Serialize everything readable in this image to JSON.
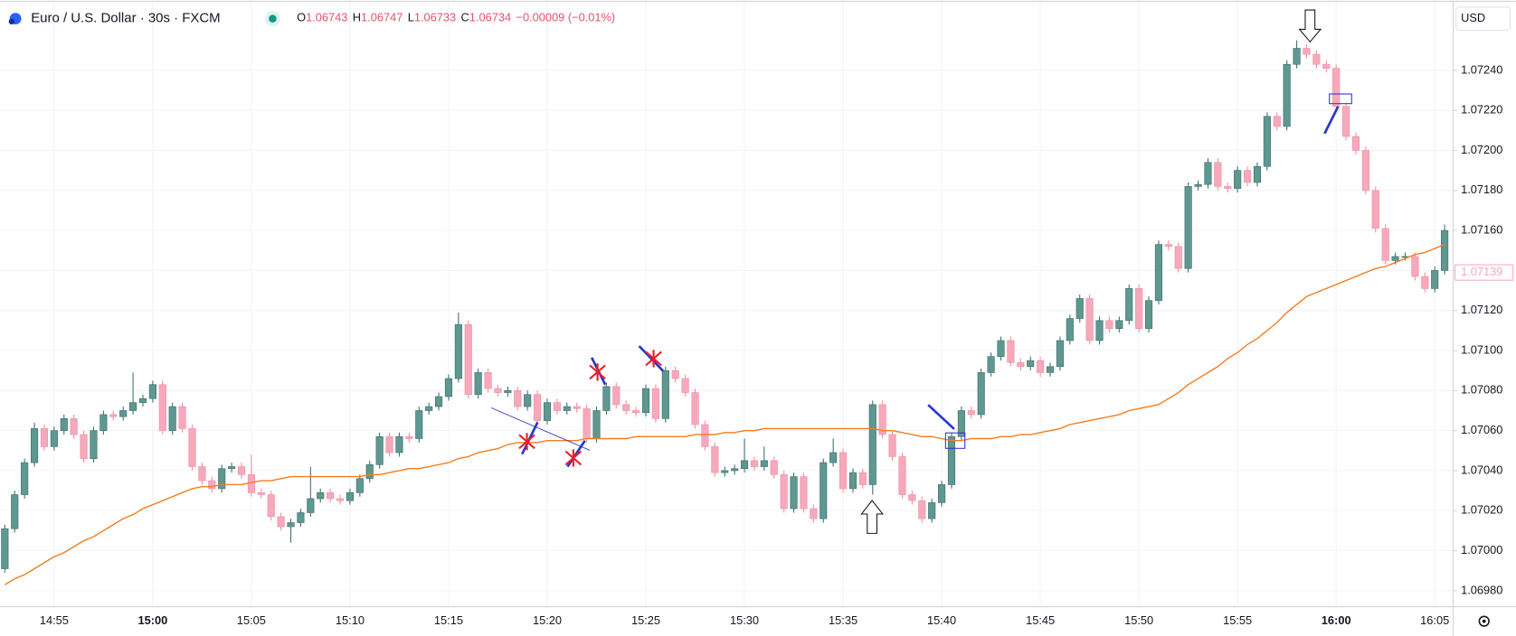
{
  "chart_data": {
    "type": "candlestick",
    "header": {
      "symbol": "Euro / U.S. Dollar · 30s · FXCM",
      "ohlc": [
        {
          "label": "O",
          "value": "1.06743"
        },
        {
          "label": "H",
          "value": "1.06747"
        },
        {
          "label": "L",
          "value": "1.06733"
        },
        {
          "label": "C",
          "value": "1.06734"
        }
      ],
      "change": "−0.00009 (−0.01%)"
    },
    "currency": "USD",
    "up_color": "#5f9791",
    "down_color": "#f7a9bb",
    "grid": true,
    "categories": [
      null,
      null,
      null,
      null,
      null,
      "14:55",
      null,
      null,
      null,
      null,
      null,
      null,
      null,
      null,
      null,
      "15:00",
      null,
      null,
      null,
      null,
      null,
      null,
      null,
      null,
      null,
      "15:05",
      null,
      null,
      null,
      null,
      null,
      null,
      null,
      null,
      null,
      "15:10",
      null,
      null,
      null,
      null,
      null,
      null,
      null,
      null,
      null,
      "15:15",
      null,
      null,
      null,
      null,
      null,
      null,
      null,
      null,
      null,
      "15:20",
      null,
      null,
      null,
      null,
      null,
      null,
      null,
      null,
      null,
      "15:25",
      null,
      null,
      null,
      null,
      null,
      null,
      null,
      null,
      null,
      "15:30",
      null,
      null,
      null,
      null,
      null,
      null,
      null,
      null,
      null,
      "15:35",
      null,
      null,
      null,
      null,
      null,
      null,
      null,
      null,
      null,
      "15:40",
      null,
      null,
      null,
      null,
      null,
      null,
      null,
      null,
      null,
      "15:45",
      null,
      null,
      null,
      null,
      null,
      null,
      null,
      null,
      null,
      "15:50",
      null,
      null,
      null,
      null,
      null,
      null,
      null,
      null,
      null,
      "15:55",
      null,
      null,
      null,
      null,
      null,
      null,
      null,
      null,
      null,
      "16:00",
      null,
      null,
      null,
      null,
      null,
      null,
      null,
      null,
      null,
      "16:05",
      null
    ],
    "open": [
      1.06991,
      1.07011,
      1.07028,
      1.07044,
      1.07061,
      1.07052,
      1.0706,
      1.07066,
      1.07058,
      1.07046,
      1.0706,
      1.07068,
      1.07067,
      1.0707,
      1.07074,
      1.07076,
      1.07083,
      1.0706,
      1.07072,
      1.07061,
      1.07042,
      1.07035,
      1.07031,
      1.07041,
      1.07042,
      1.07038,
      1.07029,
      1.07028,
      1.07017,
      1.07012,
      1.07014,
      1.07019,
      1.07026,
      1.07029,
      1.07026,
      1.07025,
      1.07029,
      1.07036,
      1.07043,
      1.07057,
      1.07049,
      1.07057,
      1.07056,
      1.0707,
      1.07072,
      1.07077,
      1.07086,
      1.07113,
      1.07078,
      1.07089,
      1.07081,
      1.07079,
      1.0708,
      1.07072,
      1.07078,
      1.07065,
      1.07074,
      1.0707,
      1.07072,
      1.07071,
      1.07056,
      1.0707,
      1.07082,
      1.07073,
      1.0707,
      1.07069,
      1.07081,
      1.07066,
      1.0709,
      1.07086,
      1.07079,
      1.07063,
      1.07052,
      1.07039,
      1.0704,
      1.07041,
      1.07045,
      1.07042,
      1.07045,
      1.07038,
      1.07021,
      1.07037,
      1.07021,
      1.07016,
      1.07044,
      1.07049,
      1.07031,
      1.07039,
      1.07033,
      1.07073,
      1.07058,
      1.07047,
      1.07028,
      1.07025,
      1.07016,
      1.07024,
      1.07033,
      1.07057,
      1.0707,
      1.07068,
      1.07089,
      1.07097,
      1.07105,
      1.07094,
      1.07092,
      1.07095,
      1.07089,
      1.07092,
      1.07105,
      1.07116,
      1.07126,
      1.07105,
      1.07115,
      1.07111,
      1.07115,
      1.07131,
      1.07111,
      1.07125,
      1.07153,
      1.07152,
      1.07141,
      1.07182,
      1.07183,
      1.07194,
      1.07182,
      1.07181,
      1.0719,
      1.07184,
      1.07192,
      1.07217,
      1.07212,
      1.07243,
      1.07251,
      1.07248,
      1.07243,
      1.07241,
      1.07222,
      1.07207,
      1.072,
      1.0718,
      1.07161,
      1.07145,
      1.07147,
      1.07147,
      1.07137,
      1.07131,
      1.0714
    ],
    "high": [
      1.07013,
      1.0703,
      1.07046,
      1.07064,
      1.07063,
      1.07062,
      1.07068,
      1.07068,
      1.0706,
      1.07062,
      1.0707,
      1.0707,
      1.07072,
      1.07089,
      1.07078,
      1.07085,
      1.07085,
      1.07074,
      1.07074,
      1.07063,
      1.07044,
      1.07037,
      1.07043,
      1.07044,
      1.07044,
      1.07048,
      1.07031,
      1.0703,
      1.07019,
      1.07016,
      1.07021,
      1.07042,
      1.07031,
      1.07031,
      1.07028,
      1.07031,
      1.07038,
      1.07045,
      1.07059,
      1.07059,
      1.07059,
      1.07059,
      1.07072,
      1.07074,
      1.07079,
      1.07088,
      1.07119,
      1.07115,
      1.07091,
      1.07091,
      1.07083,
      1.07082,
      1.07082,
      1.0708,
      1.0708,
      1.07076,
      1.07076,
      1.07074,
      1.07074,
      1.07073,
      1.07072,
      1.07084,
      1.07084,
      1.07075,
      1.07072,
      1.07083,
      1.07083,
      1.07092,
      1.07092,
      1.07088,
      1.07081,
      1.07065,
      1.07054,
      1.07042,
      1.07043,
      1.07056,
      1.07047,
      1.07052,
      1.07047,
      1.0704,
      1.07039,
      1.07039,
      1.07023,
      1.07046,
      1.07056,
      1.07051,
      1.07041,
      1.07041,
      1.07075,
      1.07075,
      1.0706,
      1.07049,
      1.0703,
      1.07027,
      1.07026,
      1.07035,
      1.07059,
      1.07072,
      1.07072,
      1.07091,
      1.07099,
      1.07107,
      1.07107,
      1.07096,
      1.07097,
      1.07097,
      1.07094,
      1.07107,
      1.07118,
      1.07128,
      1.07128,
      1.07117,
      1.07117,
      1.07117,
      1.07133,
      1.07133,
      1.07127,
      1.07155,
      1.07155,
      1.07154,
      1.07184,
      1.07185,
      1.07196,
      1.07196,
      1.07184,
      1.07192,
      1.07192,
      1.07194,
      1.07219,
      1.07219,
      1.07245,
      1.07255,
      1.07253,
      1.0725,
      1.07245,
      1.07243,
      1.07224,
      1.07209,
      1.07202,
      1.07182,
      1.07163,
      1.07149,
      1.07149,
      1.07149,
      1.07139,
      1.07142,
      1.07163
    ],
    "low": [
      1.06989,
      1.07009,
      1.07026,
      1.07042,
      1.0705,
      1.0705,
      1.07058,
      1.07056,
      1.07044,
      1.07044,
      1.07058,
      1.07065,
      1.07065,
      1.07068,
      1.07072,
      1.07074,
      1.07058,
      1.07058,
      1.07059,
      1.0704,
      1.07033,
      1.07029,
      1.07029,
      1.07039,
      1.07036,
      1.07027,
      1.07026,
      1.07015,
      1.0701,
      1.07004,
      1.07012,
      1.07017,
      1.07024,
      1.07024,
      1.07023,
      1.07023,
      1.07027,
      1.07034,
      1.07041,
      1.07047,
      1.07047,
      1.07054,
      1.07054,
      1.07068,
      1.0707,
      1.07075,
      1.07084,
      1.07076,
      1.07076,
      1.07079,
      1.07077,
      1.07077,
      1.0707,
      1.0707,
      1.07063,
      1.07063,
      1.07068,
      1.07068,
      1.07069,
      1.07054,
      1.07054,
      1.07068,
      1.07071,
      1.07068,
      1.07067,
      1.07067,
      1.07064,
      1.07064,
      1.07084,
      1.07077,
      1.07061,
      1.0705,
      1.07037,
      1.07037,
      1.07038,
      1.07039,
      1.0704,
      1.0704,
      1.07036,
      1.07019,
      1.07019,
      1.07019,
      1.07014,
      1.07014,
      1.07042,
      1.07029,
      1.07029,
      1.07031,
      1.07028,
      1.07056,
      1.07045,
      1.07026,
      1.07023,
      1.07014,
      1.07014,
      1.07022,
      1.07031,
      1.07055,
      1.07066,
      1.07066,
      1.07087,
      1.07095,
      1.07092,
      1.0709,
      1.0709,
      1.07087,
      1.07087,
      1.0709,
      1.07103,
      1.07114,
      1.07103,
      1.07103,
      1.07109,
      1.07109,
      1.07113,
      1.07109,
      1.07109,
      1.07123,
      1.0715,
      1.07139,
      1.07139,
      1.0718,
      1.07181,
      1.0718,
      1.07179,
      1.07179,
      1.07182,
      1.07182,
      1.0719,
      1.0721,
      1.0721,
      1.07241,
      1.07246,
      1.07241,
      1.07239,
      1.0722,
      1.07205,
      1.07198,
      1.07178,
      1.07159,
      1.07143,
      1.07143,
      1.07145,
      1.07135,
      1.07129,
      1.07129,
      1.07138
    ],
    "close": [
      1.07011,
      1.07028,
      1.07044,
      1.07061,
      1.07052,
      1.0706,
      1.07066,
      1.07058,
      1.07046,
      1.0706,
      1.07068,
      1.07067,
      1.0707,
      1.07074,
      1.07076,
      1.07083,
      1.0706,
      1.07072,
      1.07061,
      1.07042,
      1.07035,
      1.07031,
      1.07041,
      1.07042,
      1.07038,
      1.07029,
      1.07028,
      1.07017,
      1.07012,
      1.07014,
      1.07019,
      1.07026,
      1.07029,
      1.07026,
      1.07025,
      1.07029,
      1.07036,
      1.07043,
      1.07057,
      1.07049,
      1.07057,
      1.07056,
      1.0707,
      1.07072,
      1.07077,
      1.07086,
      1.07113,
      1.07078,
      1.07089,
      1.07081,
      1.07079,
      1.0708,
      1.07072,
      1.07078,
      1.07065,
      1.07074,
      1.0707,
      1.07072,
      1.07071,
      1.07056,
      1.0707,
      1.07082,
      1.07073,
      1.0707,
      1.07069,
      1.07081,
      1.07066,
      1.0709,
      1.07086,
      1.07079,
      1.07063,
      1.07052,
      1.07039,
      1.0704,
      1.07041,
      1.07045,
      1.07042,
      1.07045,
      1.07038,
      1.07021,
      1.07037,
      1.07021,
      1.07016,
      1.07044,
      1.07049,
      1.07031,
      1.07039,
      1.07033,
      1.07073,
      1.07058,
      1.07047,
      1.07028,
      1.07025,
      1.07016,
      1.07024,
      1.07033,
      1.07057,
      1.0707,
      1.07068,
      1.07089,
      1.07097,
      1.07105,
      1.07094,
      1.07092,
      1.07095,
      1.07089,
      1.07092,
      1.07105,
      1.07116,
      1.07126,
      1.07105,
      1.07115,
      1.07111,
      1.07115,
      1.07131,
      1.07111,
      1.07125,
      1.07153,
      1.07152,
      1.07141,
      1.07182,
      1.07183,
      1.07194,
      1.07182,
      1.07181,
      1.0719,
      1.07184,
      1.07192,
      1.07217,
      1.07212,
      1.07243,
      1.07251,
      1.07248,
      1.07243,
      1.07241,
      1.07222,
      1.07207,
      1.072,
      1.0718,
      1.07161,
      1.07145,
      1.07147,
      1.07147,
      1.07137,
      1.07131,
      1.0714,
      1.0716
    ],
    "ma": {
      "color": "#f57c1f",
      "values": [
        1.06983,
        1.06986,
        1.06988,
        1.06991,
        1.06994,
        1.06997,
        1.06999,
        1.07002,
        1.07005,
        1.07007,
        1.0701,
        1.07013,
        1.07016,
        1.07018,
        1.07021,
        1.07023,
        1.07025,
        1.07027,
        1.07029,
        1.07031,
        1.07032,
        1.07032,
        1.07033,
        1.07033,
        1.07033,
        1.07034,
        1.07035,
        1.07035,
        1.07036,
        1.07037,
        1.07037,
        1.07037,
        1.07037,
        1.07037,
        1.07037,
        1.07037,
        1.07037,
        1.07038,
        1.07038,
        1.07039,
        1.0704,
        1.07041,
        1.07041,
        1.07042,
        1.07043,
        1.07044,
        1.07046,
        1.07047,
        1.07049,
        1.0705,
        1.07051,
        1.07053,
        1.07054,
        1.07054,
        1.07054,
        1.07055,
        1.07055,
        1.07055,
        1.07055,
        1.07056,
        1.07056,
        1.07056,
        1.07056,
        1.07056,
        1.07057,
        1.07057,
        1.07057,
        1.07057,
        1.07057,
        1.07057,
        1.07058,
        1.07058,
        1.07058,
        1.07059,
        1.07059,
        1.0706,
        1.0706,
        1.07061,
        1.07061,
        1.07061,
        1.07061,
        1.07061,
        1.07061,
        1.07061,
        1.07061,
        1.07061,
        1.07061,
        1.07061,
        1.07061,
        1.0706,
        1.0706,
        1.07059,
        1.07058,
        1.07057,
        1.07057,
        1.07056,
        1.07055,
        1.07055,
        1.07056,
        1.07056,
        1.07056,
        1.07057,
        1.07057,
        1.07058,
        1.07058,
        1.07059,
        1.0706,
        1.07061,
        1.07063,
        1.07064,
        1.07065,
        1.07066,
        1.07067,
        1.07068,
        1.0707,
        1.07071,
        1.07072,
        1.07073,
        1.07076,
        1.07079,
        1.07083,
        1.07086,
        1.07089,
        1.07092,
        1.07096,
        1.07099,
        1.07103,
        1.07106,
        1.0711,
        1.07114,
        1.07119,
        1.07123,
        1.07127,
        1.07129,
        1.07131,
        1.07133,
        1.07135,
        1.07137,
        1.07139,
        1.07141,
        1.07142,
        1.07144,
        1.07146,
        1.07148,
        1.07149,
        1.07151,
        1.07153
      ]
    },
    "last_price": 1.07139,
    "ylim": [
      1.06972,
      1.07275
    ],
    "yticks": [
      {
        "value": 1.0698,
        "label": "1.06980"
      },
      {
        "value": 1.07,
        "label": "1.07000"
      },
      {
        "value": 1.0702,
        "label": "1.07020"
      },
      {
        "value": 1.0704,
        "label": "1.07040"
      },
      {
        "value": 1.0706,
        "label": "1.07060"
      },
      {
        "value": 1.0708,
        "label": "1.07080"
      },
      {
        "value": 1.071,
        "label": "1.07100"
      },
      {
        "value": 1.0712,
        "label": "1.07120"
      },
      {
        "value": 1.0714,
        "label": "1.07140"
      },
      {
        "value": 1.0716,
        "label": "1.07160"
      },
      {
        "value": 1.0718,
        "label": "1.07180"
      },
      {
        "value": 1.072,
        "label": "1.07200"
      },
      {
        "value": 1.0722,
        "label": "1.07220"
      },
      {
        "value": 1.0724,
        "label": "1.07240"
      }
    ]
  }
}
